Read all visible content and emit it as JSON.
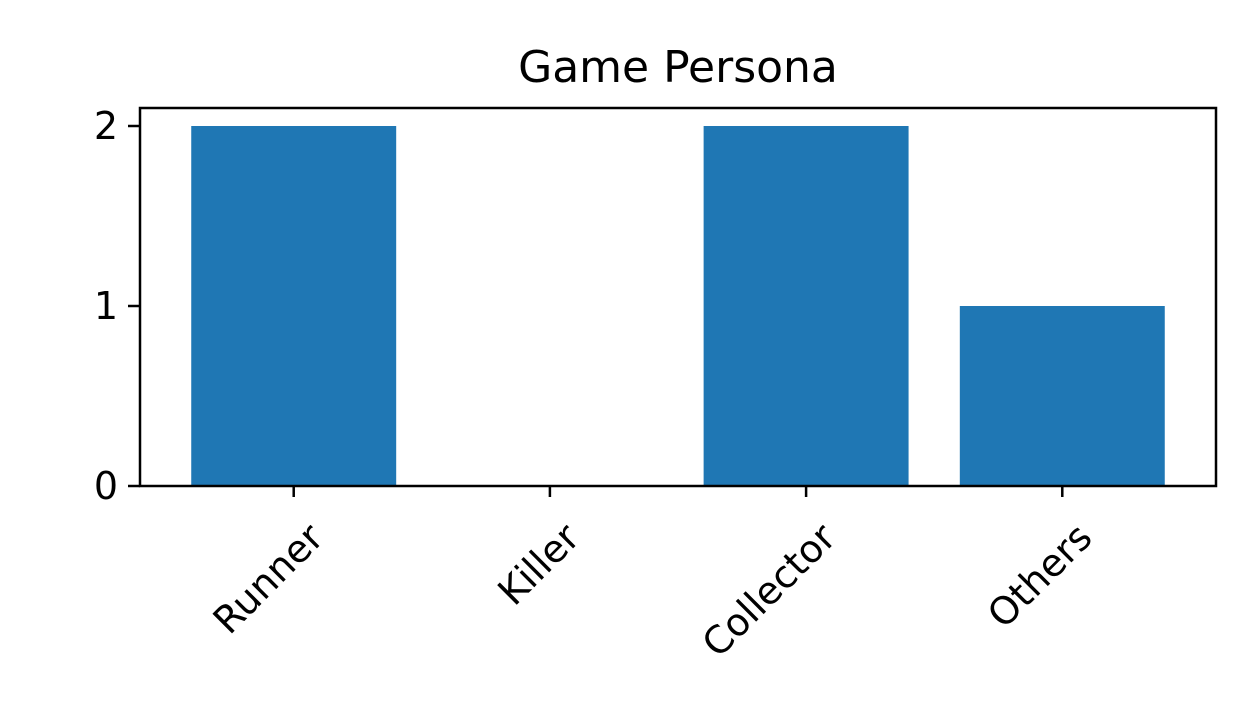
{
  "chart_data": {
    "type": "bar",
    "title": "Game Persona",
    "xlabel": "",
    "ylabel": "",
    "categories": [
      "Runner",
      "Killer",
      "Collector",
      "Others"
    ],
    "values": [
      2,
      0,
      2,
      1
    ],
    "ylim": [
      0,
      2.1
    ],
    "yticks": [
      0,
      1,
      2
    ],
    "bar_color": "#1f77b4",
    "grid": false,
    "legend": "none"
  }
}
